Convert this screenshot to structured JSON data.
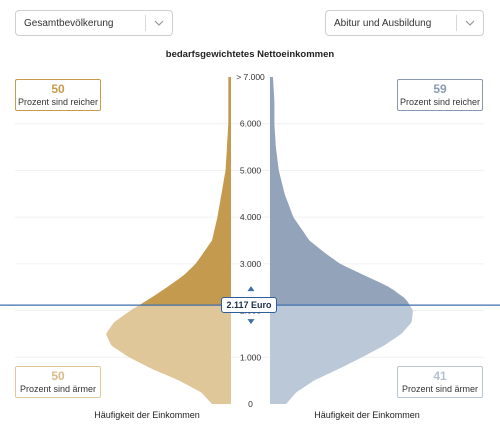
{
  "selectors": {
    "left": {
      "value": "Gesamtbevölkerung"
    },
    "right": {
      "value": "Abitur und Ausbildung"
    }
  },
  "chart_title": "bedarfsgewichtetes Nettoeinkommen",
  "left_panel": {
    "richer": {
      "percent": "50",
      "label": "Prozent sind reicher"
    },
    "poorer": {
      "percent": "50",
      "label": "Prozent sind ärmer"
    },
    "axis_label": "Häufigkeit der Einkommen"
  },
  "right_panel": {
    "richer": {
      "percent": "59",
      "label": "Prozent sind reicher"
    },
    "poorer": {
      "percent": "41",
      "label": "Prozent sind ärmer"
    },
    "axis_label": "Häufigkeit der Einkommen"
  },
  "marker": {
    "label": "2.117 Euro",
    "value": 2117
  },
  "colors": {
    "left_upper": "#c49a4f",
    "left_lower": "#dfc79a",
    "right_upper": "#93a3ba",
    "right_lower": "#bac8d7",
    "marker_line": "#3f6fab"
  },
  "chart_data": {
    "type": "area",
    "title": "bedarfsgewichtetes Nettoeinkommen",
    "xlabel": "Häufigkeit der Einkommen",
    "ylim": [
      0,
      7000
    ],
    "y_ticks": [
      {
        "value": 0,
        "label": "0"
      },
      {
        "value": 1000,
        "label": "1.000"
      },
      {
        "value": 2000,
        "label": "2.000"
      },
      {
        "value": 3000,
        "label": "3.000"
      },
      {
        "value": 4000,
        "label": "4.000"
      },
      {
        "value": 5000,
        "label": "5.000"
      },
      {
        "value": 6000,
        "label": "6.000"
      },
      {
        "value": 7000,
        "label": "> 7.000"
      }
    ],
    "split_value": 2117,
    "density_scale_max": 1.0,
    "series": [
      {
        "name": "Gesamtbevölkerung",
        "side": "left",
        "income": [
          0,
          250,
          500,
          750,
          1000,
          1250,
          1500,
          1750,
          2000,
          2250,
          2500,
          2750,
          3000,
          3250,
          3500,
          4000,
          4500,
          5000,
          5500,
          6000,
          6500,
          7000
        ],
        "density": [
          0.14,
          0.22,
          0.38,
          0.58,
          0.75,
          0.88,
          0.92,
          0.86,
          0.74,
          0.6,
          0.47,
          0.35,
          0.26,
          0.2,
          0.14,
          0.1,
          0.07,
          0.04,
          0.03,
          0.02,
          0.02,
          0.02
        ]
      },
      {
        "name": "Abitur und Ausbildung",
        "side": "right",
        "income": [
          0,
          250,
          500,
          750,
          1000,
          1250,
          1500,
          1750,
          2000,
          2250,
          2500,
          2750,
          3000,
          3250,
          3500,
          4000,
          4500,
          5000,
          5500,
          6000,
          6500,
          7000
        ],
        "density": [
          0.11,
          0.18,
          0.3,
          0.47,
          0.63,
          0.78,
          0.9,
          0.97,
          0.98,
          0.93,
          0.82,
          0.65,
          0.48,
          0.37,
          0.27,
          0.16,
          0.1,
          0.06,
          0.04,
          0.03,
          0.03,
          0.02
        ]
      }
    ]
  }
}
